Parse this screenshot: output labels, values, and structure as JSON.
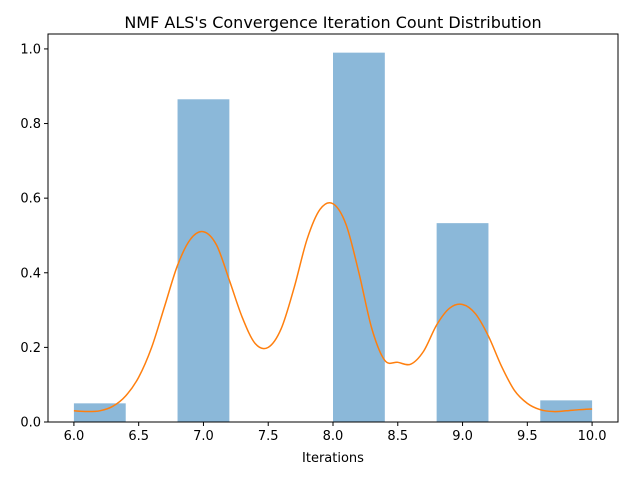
{
  "chart_data": {
    "type": "bar",
    "title": "NMF ALS's Convergence Iteration Count Distribution",
    "xlabel": "Iterations",
    "ylabel": "",
    "xlim": [
      5.8,
      10.2
    ],
    "ylim": [
      0.0,
      1.04
    ],
    "xticks": [
      6.0,
      6.5,
      7.0,
      7.5,
      8.0,
      8.5,
      9.0,
      9.5,
      10.0
    ],
    "xtick_labels": [
      "6.0",
      "6.5",
      "7.0",
      "7.5",
      "8.0",
      "8.5",
      "9.0",
      "9.5",
      "10.0"
    ],
    "yticks": [
      0.0,
      0.2,
      0.4,
      0.6,
      0.8,
      1.0
    ],
    "ytick_labels": [
      "0.0",
      "0.2",
      "0.4",
      "0.6",
      "0.8",
      "1.0"
    ],
    "grid": false,
    "series": [
      {
        "kind": "histogram",
        "color": "#8bb8d9",
        "bins": [
          {
            "x0": 6.0,
            "x1": 6.4,
            "value": 0.05
          },
          {
            "x0": 6.8,
            "x1": 7.2,
            "value": 0.865
          },
          {
            "x0": 8.0,
            "x1": 8.4,
            "value": 0.99
          },
          {
            "x0": 8.8,
            "x1": 9.2,
            "value": 0.533
          },
          {
            "x0": 9.6,
            "x1": 10.0,
            "value": 0.058
          }
        ]
      },
      {
        "kind": "density-line",
        "color": "#ff7f0e",
        "x": [
          6.0,
          6.1,
          6.2,
          6.3,
          6.4,
          6.5,
          6.6,
          6.7,
          6.8,
          6.9,
          7.0,
          7.1,
          7.2,
          7.3,
          7.4,
          7.5,
          7.6,
          7.7,
          7.8,
          7.9,
          8.0,
          8.1,
          8.2,
          8.3,
          8.4,
          8.5,
          8.6,
          8.7,
          8.8,
          8.9,
          9.0,
          9.1,
          9.2,
          9.3,
          9.4,
          9.5,
          9.6,
          9.7,
          9.8,
          9.9,
          10.0
        ],
        "y": [
          0.03,
          0.028,
          0.03,
          0.042,
          0.07,
          0.12,
          0.2,
          0.31,
          0.42,
          0.49,
          0.51,
          0.475,
          0.38,
          0.28,
          0.21,
          0.2,
          0.25,
          0.36,
          0.49,
          0.57,
          0.585,
          0.53,
          0.4,
          0.25,
          0.165,
          0.16,
          0.155,
          0.19,
          0.26,
          0.305,
          0.315,
          0.29,
          0.23,
          0.15,
          0.085,
          0.05,
          0.033,
          0.028,
          0.03,
          0.033,
          0.035
        ]
      }
    ]
  }
}
